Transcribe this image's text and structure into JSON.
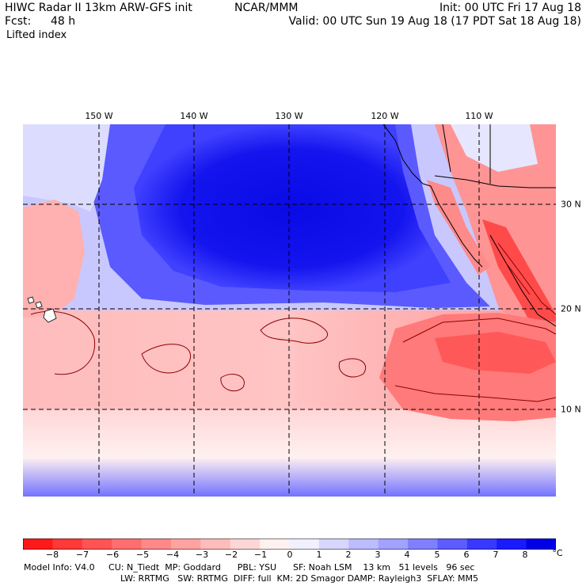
{
  "header": {
    "title": "HIWC Radar II 13km ARW-GFS init",
    "org": "NCAR/MMM",
    "init": "Init: 00 UTC Fri 17 Aug 18",
    "fcst_label": "Fcst:",
    "fcst_value": "48 h",
    "valid": "Valid: 00 UTC Sun 19 Aug 18 (17 PDT Sat 18 Aug 18)",
    "field": "Lifted index"
  },
  "map": {
    "lon_labels": [
      "150 W",
      "140 W",
      "130 W",
      "120 W",
      "110 W"
    ],
    "lat_labels": [
      "30 N",
      "20 N",
      "10 N"
    ]
  },
  "colorbar": {
    "ticks": [
      "−8",
      "−7",
      "−6",
      "−5",
      "−4",
      "−3",
      "−2",
      "−1",
      "0",
      "1",
      "2",
      "3",
      "4",
      "5",
      "6",
      "7",
      "8"
    ],
    "unit": "°C",
    "colors": [
      "#ff1a1a",
      "#ff3838",
      "#ff5454",
      "#ff6e6e",
      "#ff8888",
      "#ffa2a2",
      "#ffbcbc",
      "#ffd6d6",
      "#fff0f0",
      "#f0f0ff",
      "#d6d6ff",
      "#bcbcff",
      "#a2a2ff",
      "#8080ff",
      "#5c5cff",
      "#3838ff",
      "#1a1aff",
      "#0000e6"
    ]
  },
  "footer": {
    "line1": "Model Info: V4.0     CU: N_Tiedt  MP: Goddard      PBL: YSU      SF: Noah LSM    13 km   51 levels   96 sec",
    "line2": "LW: RRTMG   SW: RRTMG  DIFF: full  KM: 2D Smagor DAMP: Rayleigh3  SFLAY: MM5"
  }
}
